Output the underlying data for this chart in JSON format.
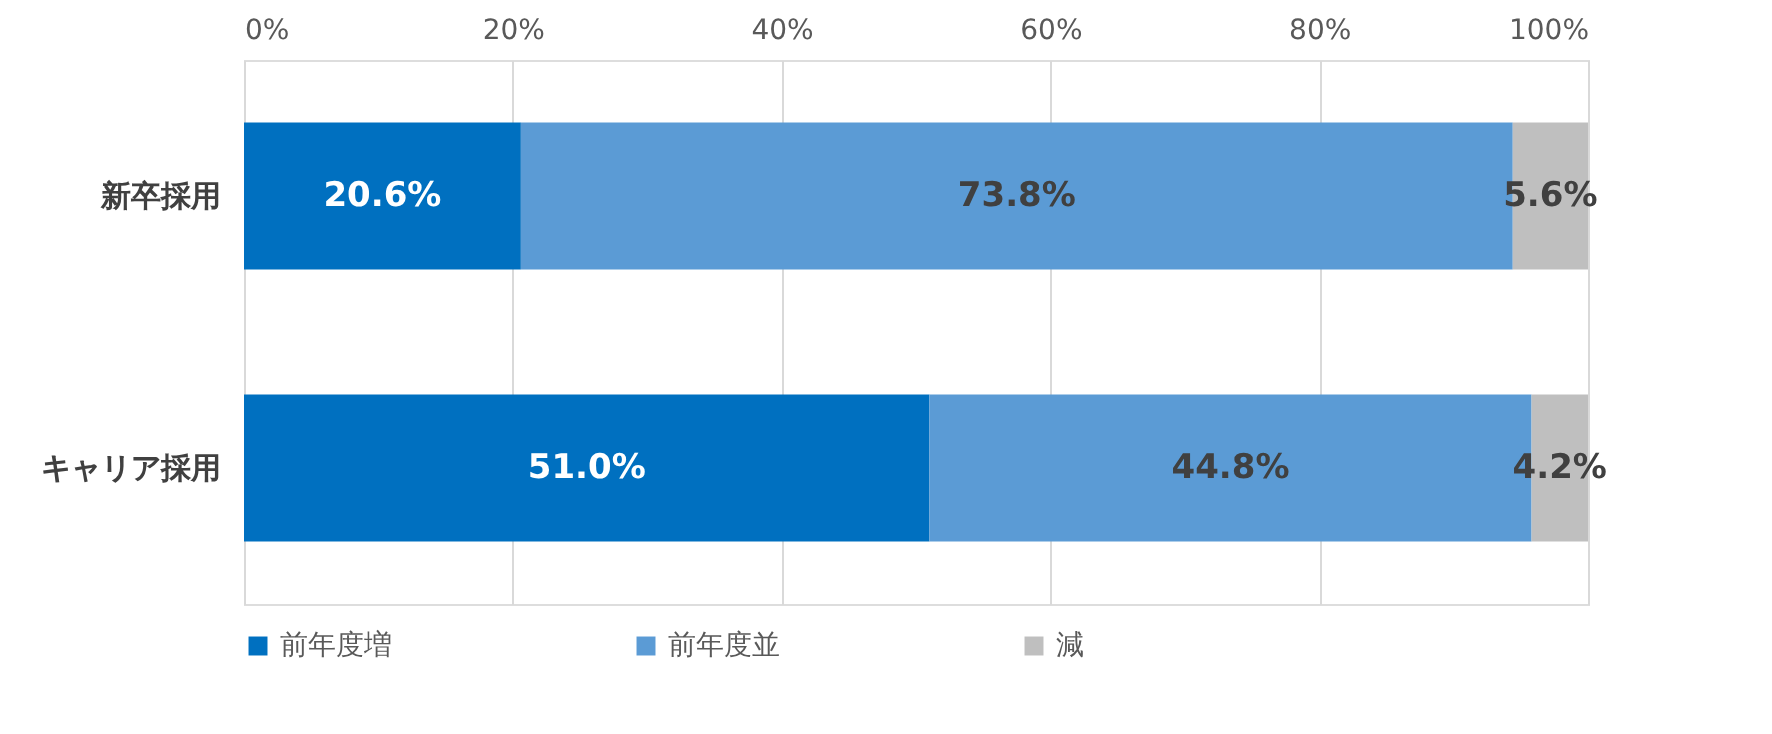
{
  "chart_data": {
    "type": "bar",
    "orientation": "horizontal",
    "stacked": true,
    "categories": [
      "新卒採用",
      "キャリア採用"
    ],
    "series": [
      {
        "name": "前年度増",
        "color": "#0070c0",
        "values": [
          20.6,
          51.0
        ],
        "value_labels": [
          "20.6%",
          "51.0%"
        ]
      },
      {
        "name": "前年度並",
        "color": "#5b9bd5",
        "values": [
          73.8,
          44.8
        ],
        "value_labels": [
          "73.8%",
          "44.8%"
        ]
      },
      {
        "name": "減",
        "color": "#bfbfbf",
        "values": [
          5.6,
          4.2
        ],
        "value_labels": [
          "5.6%",
          "4.2%"
        ]
      }
    ],
    "xlim": [
      0,
      100
    ],
    "xticks": [
      {
        "value": 0,
        "label": "0%"
      },
      {
        "value": 20,
        "label": "20%"
      },
      {
        "value": 40,
        "label": "40%"
      },
      {
        "value": 60,
        "label": "60%"
      },
      {
        "value": 80,
        "label": "80%"
      },
      {
        "value": 100,
        "label": "100%"
      }
    ],
    "grid": "x",
    "legend": "bottom"
  }
}
